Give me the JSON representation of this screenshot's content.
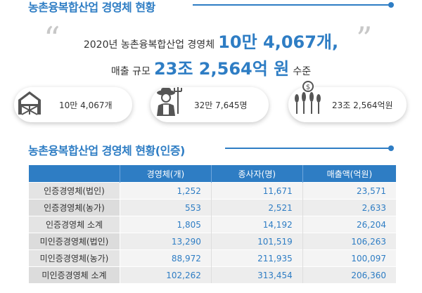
{
  "header": {
    "title": "농촌융복합산업 경영체 현황"
  },
  "summary": {
    "line1_prefix": "2020년 농촌융복합산업 경영체",
    "line1_highlight": "10만 4,067개,",
    "line2_prefix": "매출 규모",
    "line2_highlight": "23조 2,564억 원",
    "line2_suffix": "수준"
  },
  "stats": [
    {
      "icon": "barn-icon",
      "label": "10만 4,067개"
    },
    {
      "icon": "farmer-icon",
      "label": "32만 7,645명"
    },
    {
      "icon": "money-crops-icon",
      "label": "23조 2,564억원"
    }
  ],
  "table_section": {
    "title": "농촌융복합산업 경영체 현황(인증)"
  },
  "table": {
    "columns": [
      "",
      "경영체(개)",
      "종사자(명)",
      "매출액(억원)"
    ],
    "rows": [
      {
        "label": "인증경영체(법인)",
        "values": [
          "1,252",
          "11,671",
          "23,571"
        ]
      },
      {
        "label": "인증경영체(농가)",
        "values": [
          "553",
          "2,521",
          "2,633"
        ]
      },
      {
        "label": "인증경영체 소계",
        "values": [
          "1,805",
          "14,192",
          "26,204"
        ]
      },
      {
        "label": "미인증경영체(법인)",
        "values": [
          "13,290",
          "101,519",
          "106,263"
        ]
      },
      {
        "label": "미인증경영체(농가)",
        "values": [
          "88,972",
          "211,935",
          "100,097"
        ]
      },
      {
        "label": "미인증경영체 소계",
        "values": [
          "102,262",
          "313,454",
          "206,360"
        ]
      }
    ]
  },
  "colors": {
    "accent": "#2e7dc4",
    "header_row": "#2e7dc4",
    "row_label_bg": "#e4e4e4",
    "cell_bg": "#f4f4f4"
  }
}
